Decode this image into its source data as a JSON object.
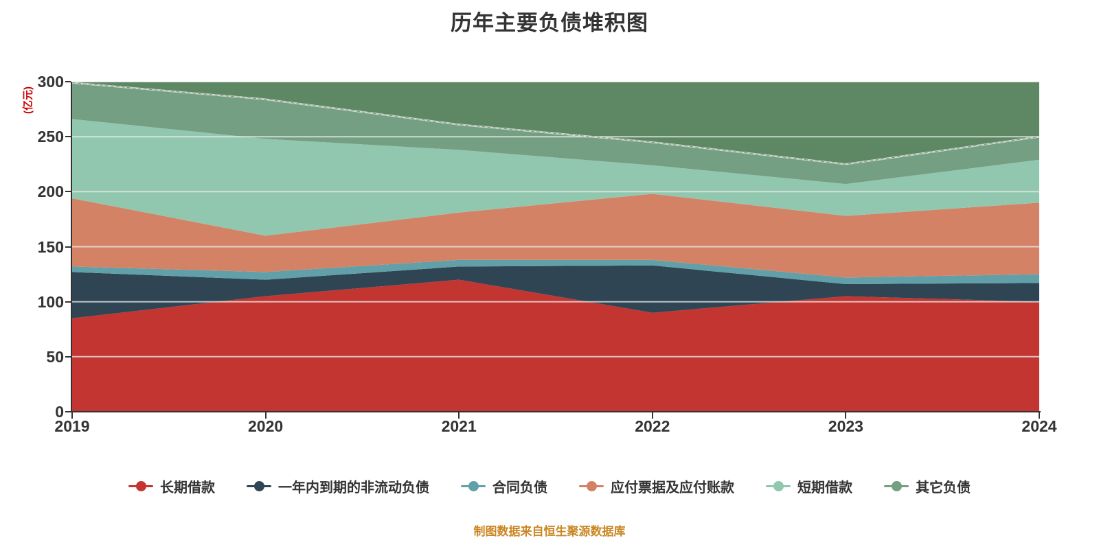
{
  "title": "历年主要负债堆积图",
  "y_axis_name": "(亿元)",
  "footer": {
    "text": "制图数据来自恒生聚源数据库",
    "color": "#ca8622"
  },
  "colors": {
    "title": "#333333",
    "axis": "#333333",
    "y_axis_name": "#cc0000",
    "grid_line": "#eceeec",
    "headroom_fill": "#5e8864",
    "stack_top_line_light": "#dce8dc",
    "stack_top_line_dark": "#1e2d20",
    "background": "#ffffff"
  },
  "chart_data": {
    "type": "area",
    "stacked": true,
    "title": "历年主要负债堆积图",
    "ylabel": "(亿元)",
    "xlabel": "",
    "x": [
      "2019",
      "2020",
      "2021",
      "2022",
      "2023",
      "2024"
    ],
    "ylim": [
      0,
      300
    ],
    "y_ticks": [
      0,
      50,
      100,
      150,
      200,
      250,
      300
    ],
    "grid": true,
    "legend_position": "bottom",
    "series": [
      {
        "name": "长期借款",
        "color": "#c23531",
        "values": [
          85,
          105,
          120,
          90,
          105,
          100
        ]
      },
      {
        "name": "一年内到期的非流动负债",
        "color": "#2f4554",
        "values": [
          42,
          15,
          12,
          43,
          11,
          17
        ]
      },
      {
        "name": "合同负债",
        "color": "#61a0a8",
        "values": [
          5,
          7,
          6,
          5,
          6,
          8
        ]
      },
      {
        "name": "应付票据及应付账款",
        "color": "#d48265",
        "values": [
          62,
          33,
          43,
          60,
          56,
          65
        ]
      },
      {
        "name": "短期借款",
        "color": "#91c7ae",
        "values": [
          72,
          88,
          57,
          26,
          29,
          39
        ]
      },
      {
        "name": "其它负债",
        "color": "#749f83",
        "values": [
          33,
          36,
          23,
          21,
          18,
          21
        ]
      }
    ],
    "totals": [
      299,
      284,
      261,
      245,
      225,
      250
    ],
    "annotations": "区域堆叠顶部与坐标轴上限(300)之间填充深绿色楔形区域"
  },
  "legend": {
    "items": [
      {
        "label": "长期借款",
        "color": "#c23531"
      },
      {
        "label": "一年内到期的非流动负债",
        "color": "#2f4554"
      },
      {
        "label": "合同负债",
        "color": "#61a0a8"
      },
      {
        "label": "应付票据及应付账款",
        "color": "#d48265"
      },
      {
        "label": "短期借款",
        "color": "#91c7ae"
      },
      {
        "label": "其它负债",
        "color": "#749f83"
      }
    ]
  }
}
